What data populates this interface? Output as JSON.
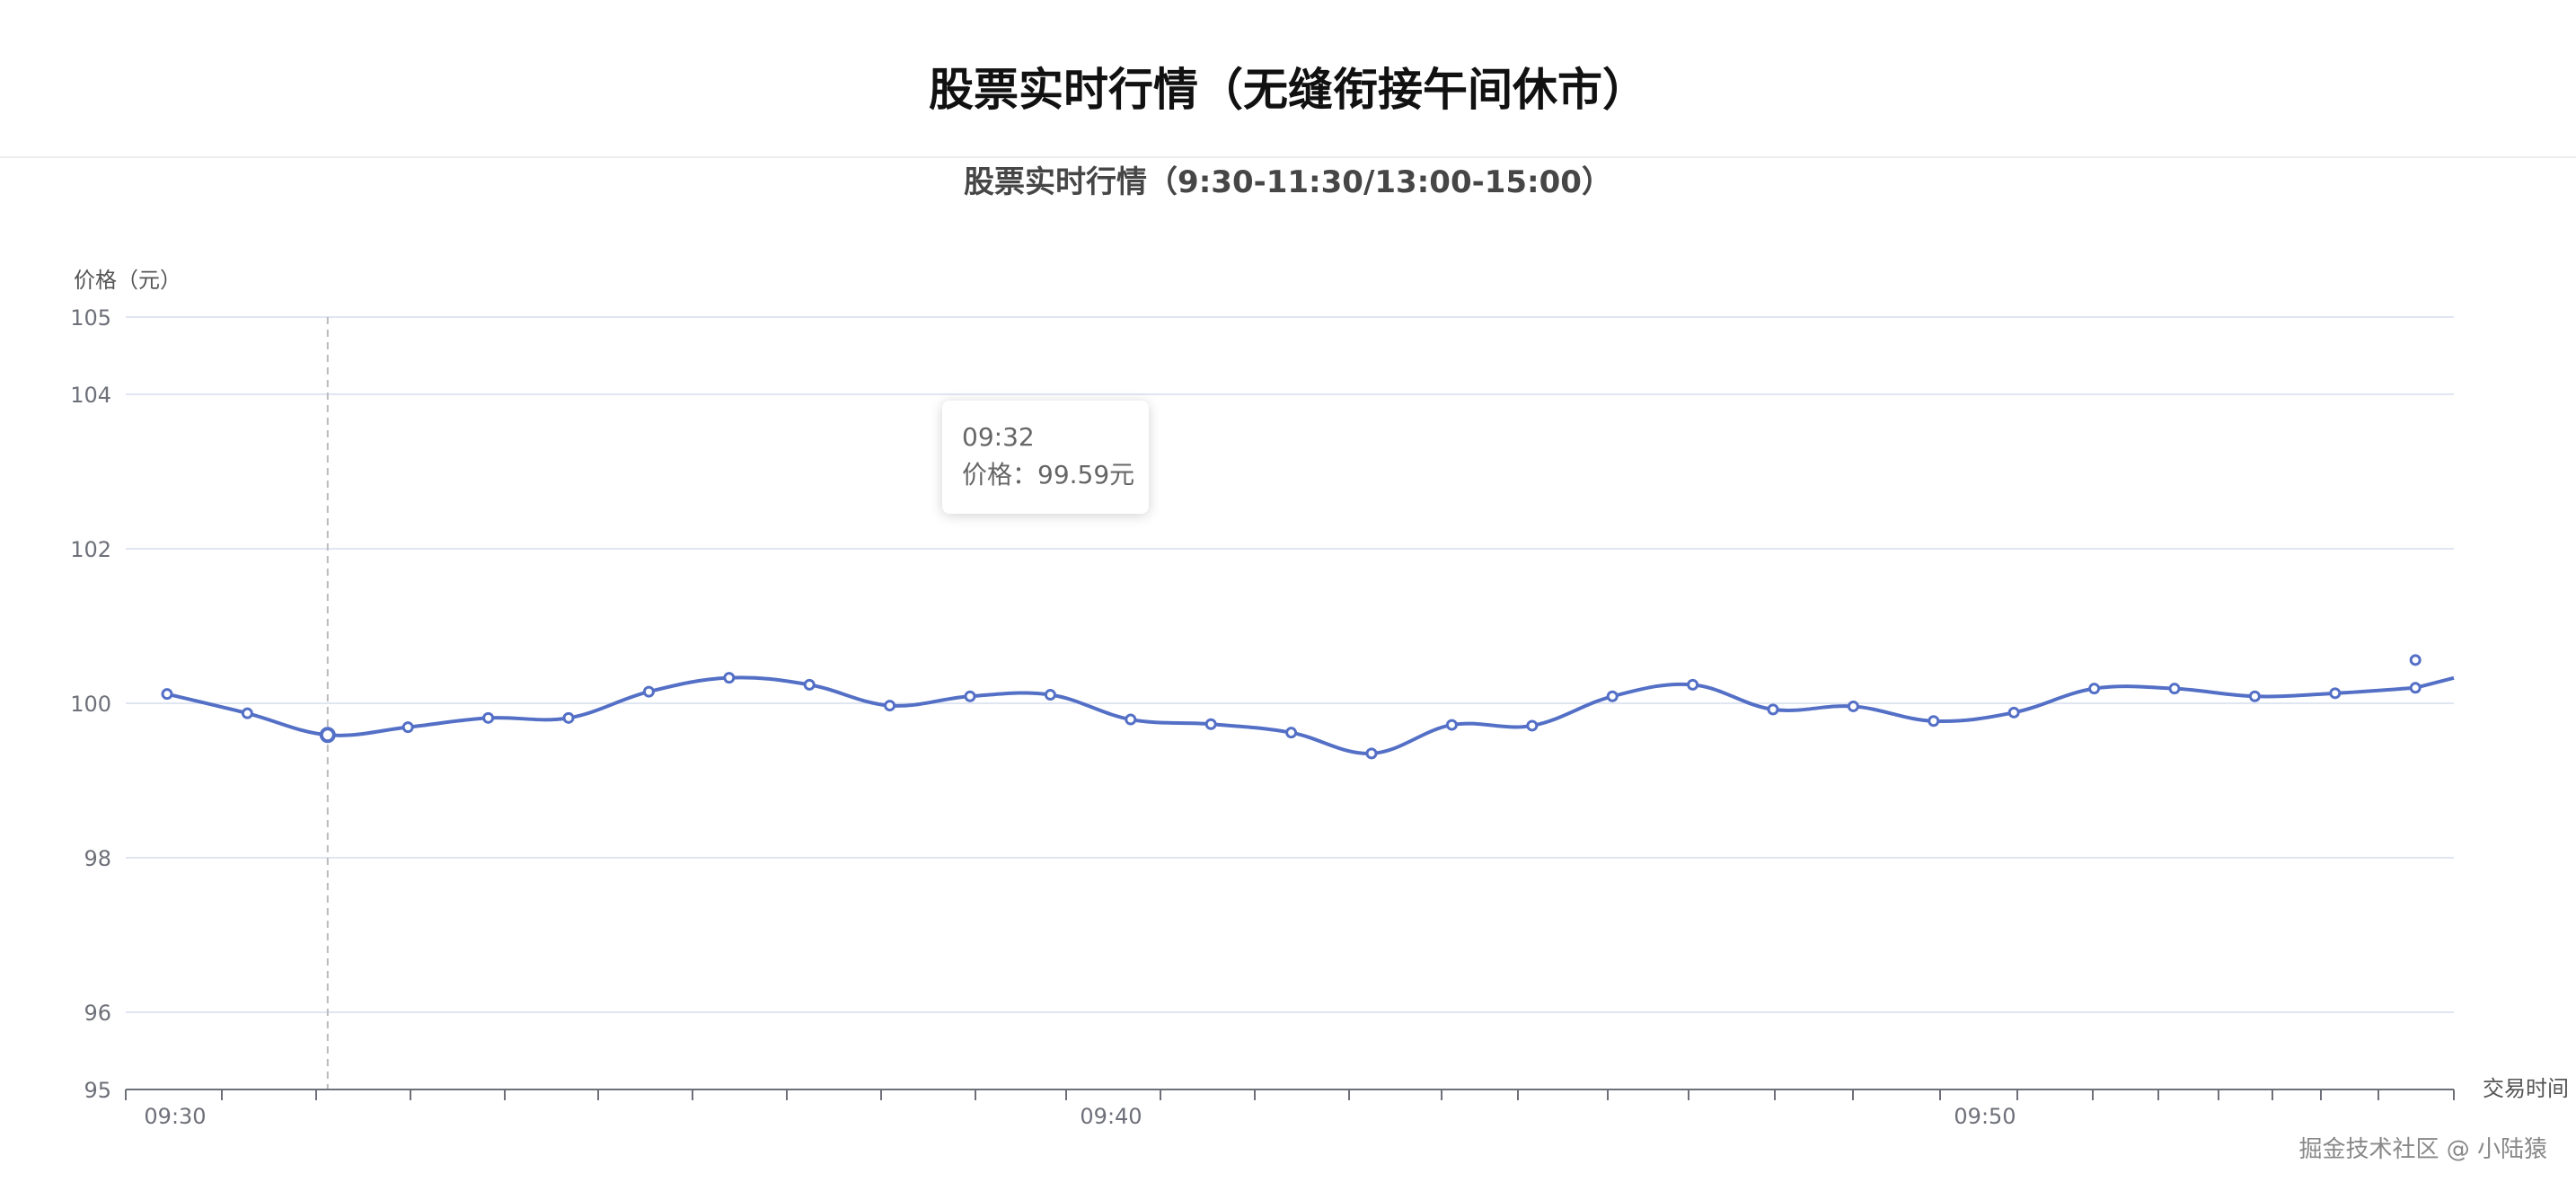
{
  "page": {
    "title": "股票实时行情（无缝衔接午间休市）"
  },
  "tooltip": {
    "time": "09:32",
    "label": "价格：99.59元"
  },
  "watermark": "掘金技术社区 @ 小陆猿",
  "chart_data": {
    "type": "line",
    "title": "股票实时行情（9:30-11:30/13:00-15:00）",
    "ylabel": "价格（元）",
    "xlabel": "交易时间",
    "ylim": [
      95,
      105
    ],
    "y_ticks": [
      95,
      96,
      98,
      100,
      102,
      104,
      105
    ],
    "x_tick_labels": [
      "09:30",
      "09:40",
      "09:50"
    ],
    "grid": true,
    "smooth": true,
    "series": [
      {
        "x": [
          "09:30",
          "09:31",
          "09:32",
          "09:33",
          "09:34",
          "09:35",
          "09:36",
          "09:37",
          "09:38",
          "09:39",
          "09:40",
          "09:41",
          "09:42",
          "09:43",
          "09:44",
          "09:45",
          "09:46",
          "09:47",
          "09:48",
          "09:49",
          "09:50",
          "09:51",
          "09:52",
          "09:53",
          "09:54",
          "09:55",
          "09:56",
          "09:57",
          "09:58"
        ],
        "values": [
          100.12,
          99.87,
          99.59,
          99.69,
          99.81,
          99.81,
          100.15,
          100.33,
          100.24,
          99.97,
          100.09,
          100.11,
          99.79,
          99.73,
          99.62,
          99.35,
          99.72,
          99.71,
          100.09,
          100.24,
          99.92,
          99.96,
          99.77,
          99.88,
          100.19,
          100.19,
          100.09,
          100.13,
          100.2
        ],
        "color": "#5470c6"
      }
    ],
    "extra_point": {
      "x": "09:58",
      "y": 100.56
    },
    "hover": {
      "x": "09:32",
      "y": 99.59
    }
  }
}
